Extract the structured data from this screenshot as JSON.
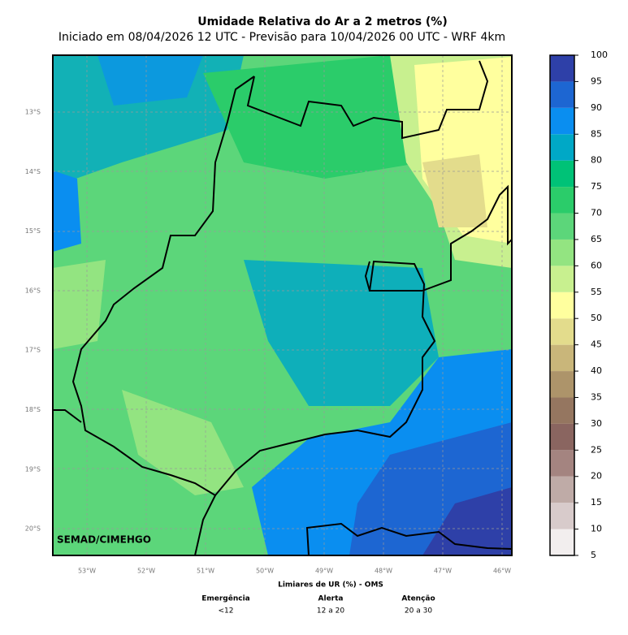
{
  "map": {
    "title": "Umidade Relativa do Ar a 2 metros (%)",
    "subtitle": "Iniciado em 08/04/2026 12 UTC - Previsão para 10/04/2026 00 UTC - WRF 4km",
    "watermark": "SEMAD/CIMEHGO",
    "lat_labels": [
      "13°S",
      "14°S",
      "15°S",
      "16°S",
      "17°S",
      "18°S",
      "19°S",
      "20°S"
    ],
    "lon_labels": [
      "53°W",
      "52°W",
      "51°W",
      "50°W",
      "49°W",
      "48°W",
      "47°W",
      "46°W"
    ],
    "colorbar": {
      "ticks": [
        5,
        10,
        15,
        20,
        25,
        30,
        35,
        40,
        45,
        50,
        55,
        60,
        65,
        70,
        75,
        80,
        85,
        90,
        95,
        100
      ],
      "colors": [
        "#f2eeee",
        "#d8cbcb",
        "#bfaba7",
        "#a48480",
        "#8a6560",
        "#957660",
        "#ad946a",
        "#c9b67a",
        "#e3dc8c",
        "#ffff9e",
        "#c8f08f",
        "#93e481",
        "#5cd67a",
        "#2bcc6a",
        "#00c277",
        "#00a8c6",
        "#0a8ef0",
        "#1d66d2",
        "#2e40a8"
      ]
    },
    "legend": {
      "title": "Limiares de UR (%) - OMS",
      "columns": [
        {
          "name": "Emergência",
          "range": "<12"
        },
        {
          "name": "Alerta",
          "range": "12 a 20"
        },
        {
          "name": "Atenção",
          "range": "20 a 30"
        }
      ]
    }
  }
}
